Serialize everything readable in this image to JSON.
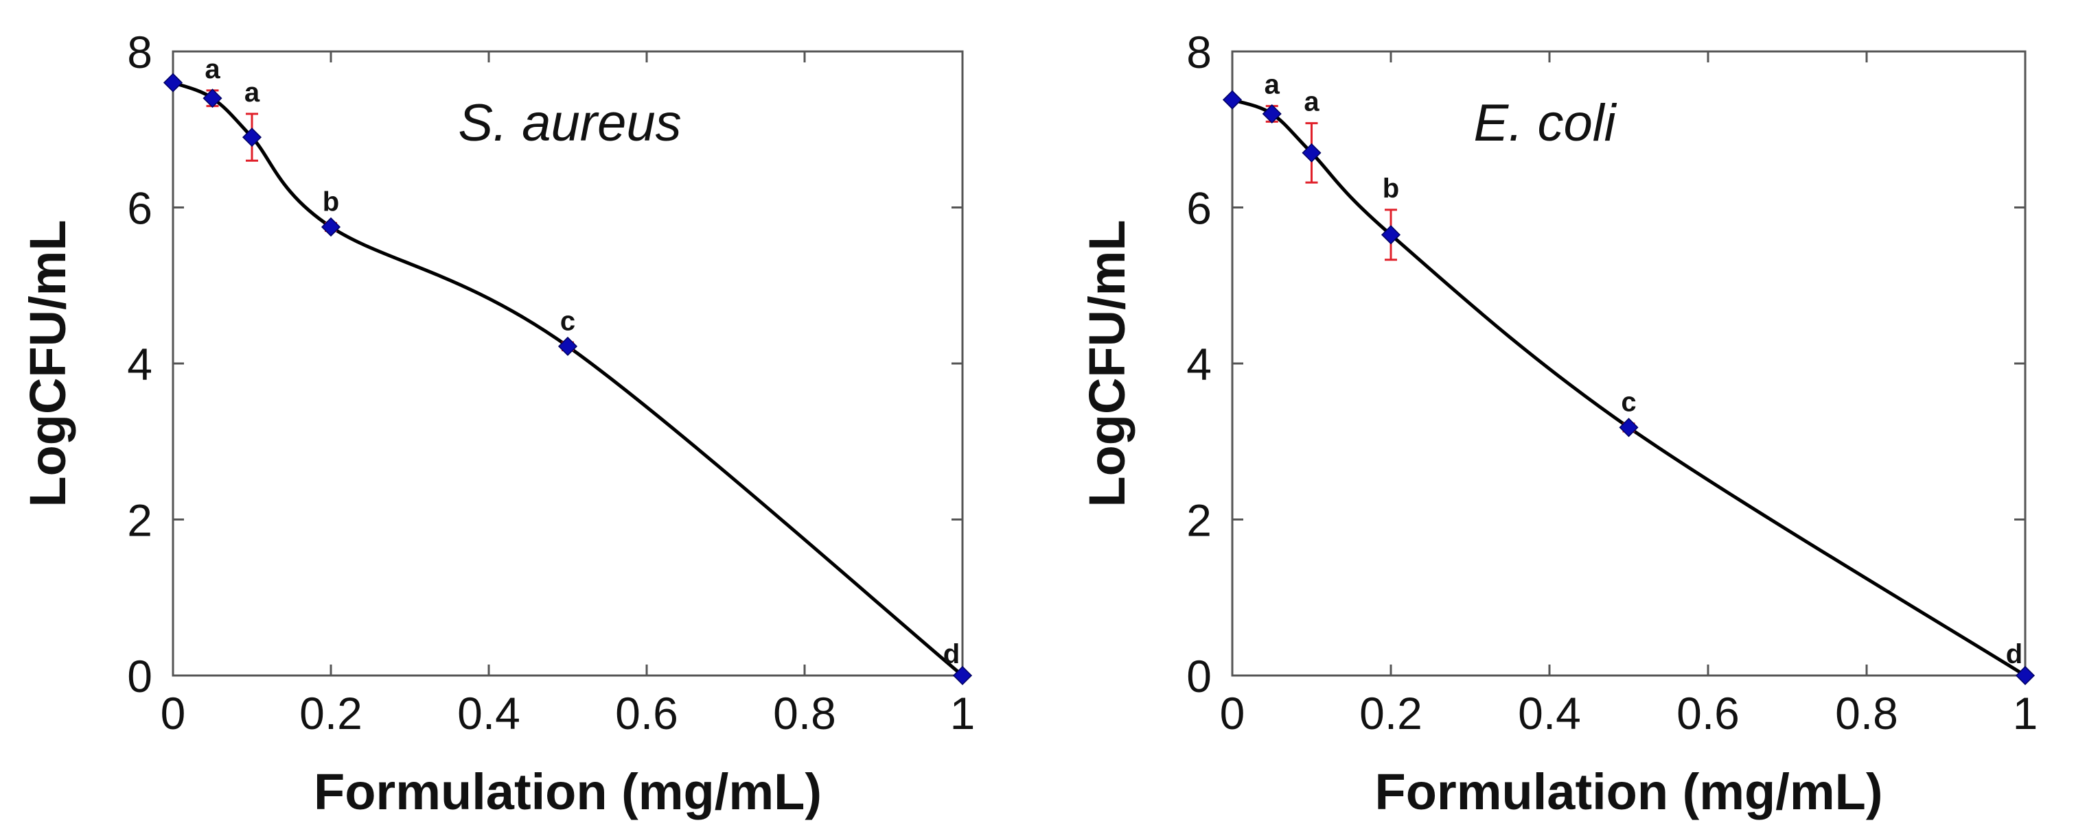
{
  "chart_data": [
    {
      "type": "line",
      "title": "S. aureus",
      "xlabel": "Formulation (mg/mL)",
      "ylabel": "LogCFU/mL",
      "xlim": [
        0,
        1
      ],
      "ylim": [
        0,
        8
      ],
      "x_ticks": [
        "0",
        "0.2",
        "0.4",
        "0.6",
        "0.8",
        "1"
      ],
      "y_ticks": [
        "0",
        "2",
        "4",
        "6",
        "8"
      ],
      "series": [
        {
          "name": "S. aureus",
          "x": [
            0,
            0.05,
            0.1,
            0.2,
            0.5,
            1
          ],
          "y": [
            7.6,
            7.4,
            6.9,
            5.75,
            4.22,
            0.0
          ],
          "error": [
            0.0,
            0.1,
            0.3,
            0.05,
            0.05,
            0.0
          ],
          "point_labels": [
            "",
            "a",
            "a",
            "b",
            "c",
            "d"
          ]
        }
      ]
    },
    {
      "type": "line",
      "title": "E. coli",
      "xlabel": "Formulation (mg/mL)",
      "ylabel": "LogCFU/mL",
      "xlim": [
        0,
        1
      ],
      "ylim": [
        0,
        8
      ],
      "x_ticks": [
        "0",
        "0.2",
        "0.4",
        "0.6",
        "0.8",
        "1"
      ],
      "y_ticks": [
        "0",
        "2",
        "4",
        "6",
        "8"
      ],
      "series": [
        {
          "name": "E. coli",
          "x": [
            0,
            0.05,
            0.1,
            0.2,
            0.5,
            1
          ],
          "y": [
            7.38,
            7.2,
            6.7,
            5.65,
            3.18,
            0.0
          ],
          "error": [
            0.0,
            0.1,
            0.38,
            0.32,
            0.05,
            0.0
          ],
          "point_labels": [
            "",
            "a",
            "a",
            "b",
            "c",
            "d"
          ]
        }
      ]
    }
  ],
  "colors": {
    "line": "#000000",
    "marker": "#0a0ab4",
    "error_bar": "#e0202a",
    "axis": "#555555"
  }
}
